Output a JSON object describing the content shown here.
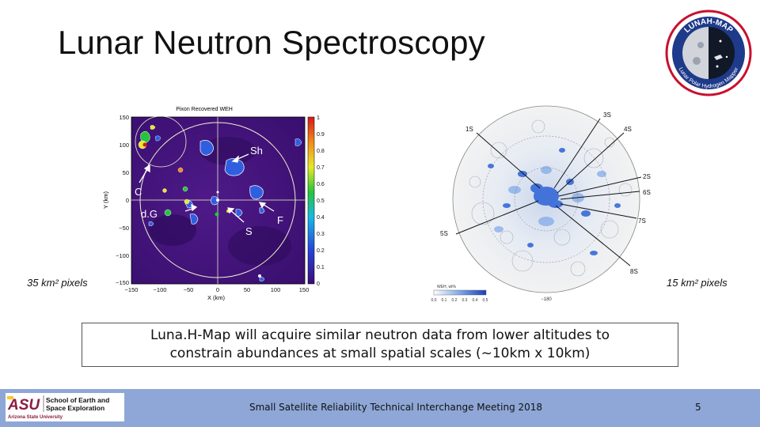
{
  "slide": {
    "title": "Lunar Neutron Spectroscopy",
    "caption_left": "35 km² pixels",
    "caption_right": "15 km² pixels",
    "body_line1": "Luna.H-Map will acquire similar neutron data from lower altitudes to",
    "body_line2": "constrain abundances at small spatial scales (~10km x 10km)",
    "footer_center": "Small Satellite Reliability Technical Interchange Meeting 2018",
    "page_number": "5"
  },
  "logo": {
    "text_top": "LUNAH-MAP",
    "text_ring": "Lunar Polar Hydrogen Mapper"
  },
  "asu": {
    "mark": "ASU",
    "line1": "School of Earth and",
    "line2": "Space Exploration",
    "line3": "Arizona State University"
  },
  "left_figure": {
    "title": "Pixon Recovered WEH",
    "xlabel": "X (km)",
    "ylabel": "Y (km)",
    "y_ticks": [
      "150",
      "100",
      "50",
      "0",
      "−50",
      "−100",
      "−150"
    ],
    "x_ticks": [
      "−150",
      "−100",
      "−50",
      "0",
      "50",
      "100",
      "150"
    ],
    "colorbar_ticks": [
      "1",
      "0.9",
      "0.8",
      "0.7",
      "0.6",
      "0.5",
      "0.4",
      "0.3",
      "0.2",
      "0.1",
      "0"
    ],
    "labels": {
      "sh": "Sh",
      "c": "C",
      "dg": "d.G",
      "f": "F",
      "s": "S"
    }
  },
  "right_figure": {
    "labels": {
      "l1s": "1S",
      "l3s": "3S",
      "l4s": "4S",
      "l2s": "2S",
      "l6s": "6S",
      "l7s": "7S",
      "l5s": "5S",
      "l8s": "8S"
    },
    "scale_title": "WEH, wt%",
    "scale_ticks": [
      "0.0",
      "0.1",
      "0.2",
      "0.3",
      "0.4",
      "0.5"
    ],
    "deg_label": "−180"
  },
  "colors": {
    "footer": "#8ea7d7",
    "asu_maroon": "#8c1d40",
    "asu_gold": "#ffc627",
    "plot_purple": "#5a1d8c"
  }
}
